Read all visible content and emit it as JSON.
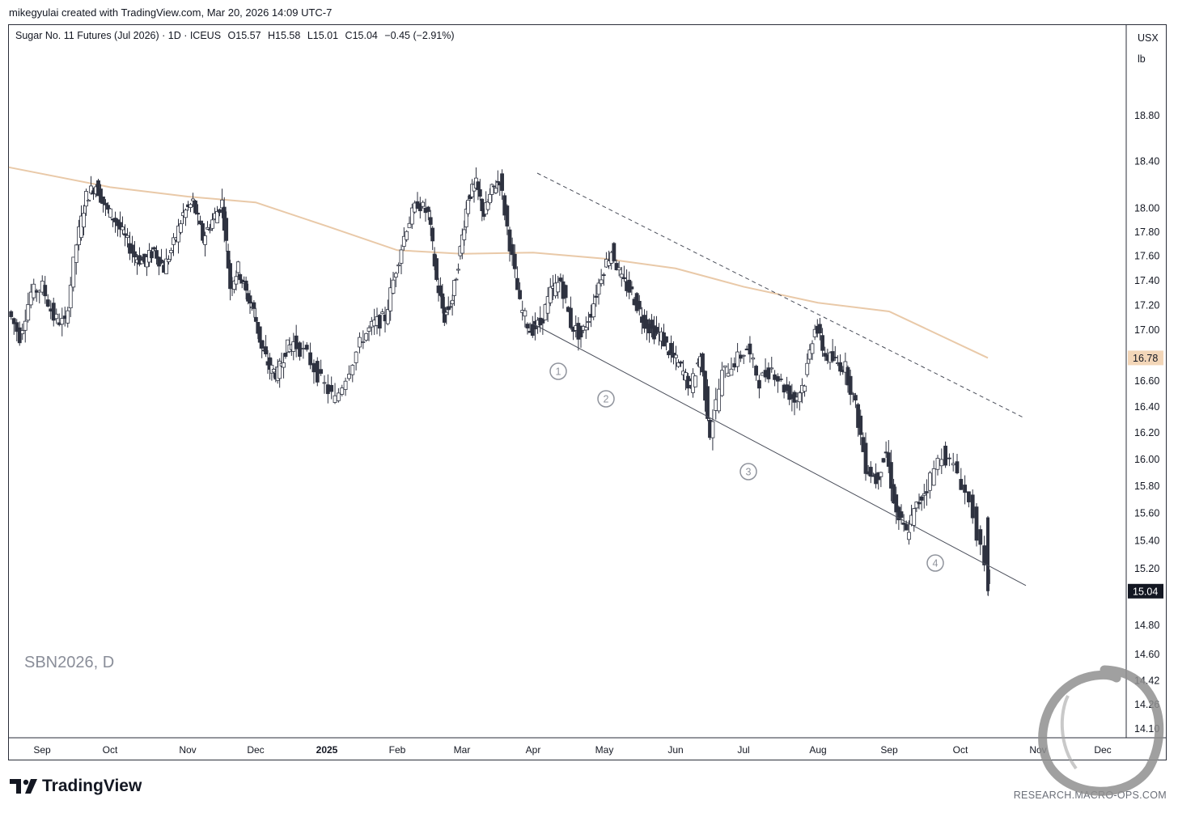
{
  "header": {
    "creator": "mikegyulai created with TradingView.com, Mar 20, 2026 14:09 UTC-7"
  },
  "legend": {
    "title": "Sugar No. 11 Futures (Jul 2026) · 1D · ICEUS",
    "open": "O15.57",
    "high": "H15.58",
    "low": "L15.01",
    "close": "C15.04",
    "change": "−0.45 (−2.91%)"
  },
  "unit": {
    "currency": "USX",
    "per": "lb"
  },
  "symbol_watermark": "SBN2026, D",
  "footer": {
    "brand": "TradingView",
    "url": "RESEARCH.MACRO-OPS.COM"
  },
  "colors": {
    "up_candle": "#ffffff",
    "down_candle": "#2e3240",
    "moving_average": "#e9c9a8",
    "ma_label_bg": "#f3d6b8",
    "last_price_bg": "#131722"
  },
  "chart_data": {
    "type": "candlestick",
    "y_scale": "log",
    "y_tick_labels": [
      "18.80",
      "18.40",
      "18.00",
      "17.80",
      "17.60",
      "17.40",
      "17.20",
      "17.00",
      "16.60",
      "16.40",
      "16.20",
      "16.00",
      "15.80",
      "15.60",
      "15.40",
      "15.20",
      "14.80",
      "14.60",
      "14.42",
      "14.26",
      "14.10"
    ],
    "x_tick_labels": [
      "Sep",
      "Oct",
      "Nov",
      "Dec",
      "2025",
      "Feb",
      "Mar",
      "Apr",
      "May",
      "Jun",
      "Jul",
      "Aug",
      "Sep",
      "Oct",
      "Nov",
      "Dec"
    ],
    "ma_label": "16.78",
    "last_price_label": "15.04",
    "wave_labels": [
      "1",
      "2",
      "3",
      "4"
    ],
    "close_path": [
      [
        "Sep",
        17.15
      ],
      [
        "Sep",
        16.95
      ],
      [
        "Sep",
        17.3
      ],
      [
        "Sep",
        17.35
      ],
      [
        "Sep",
        17.1
      ],
      [
        "Sep",
        17.05
      ],
      [
        "Oct",
        17.7
      ],
      [
        "Oct",
        18.1
      ],
      [
        "Oct",
        18.2
      ],
      [
        "Oct",
        18.0
      ],
      [
        "Oct",
        17.9
      ],
      [
        "Oct",
        17.75
      ],
      [
        "Oct",
        17.6
      ],
      [
        "Oct",
        17.55
      ],
      [
        "Nov",
        17.65
      ],
      [
        "Nov",
        17.5
      ],
      [
        "Nov",
        17.7
      ],
      [
        "Nov",
        17.95
      ],
      [
        "Nov",
        18.05
      ],
      [
        "Nov",
        17.75
      ],
      [
        "Nov",
        17.9
      ],
      [
        "Dec",
        18.05
      ],
      [
        "Dec",
        17.35
      ],
      [
        "Dec",
        17.5
      ],
      [
        "Dec",
        17.3
      ],
      [
        "Dec",
        17.15
      ],
      [
        "Dec",
        16.85
      ],
      [
        "Dec",
        16.7
      ],
      [
        "Dec",
        16.65
      ],
      [
        "Dec",
        16.85
      ],
      [
        "2025",
        16.9
      ],
      [
        "2025",
        16.8
      ],
      [
        "2025",
        16.6
      ],
      [
        "2025",
        16.45
      ],
      [
        "2025",
        16.7
      ],
      [
        "Feb",
        16.95
      ],
      [
        "Feb",
        17.05
      ],
      [
        "Feb",
        17.1
      ],
      [
        "Feb",
        17.5
      ],
      [
        "Feb",
        17.85
      ],
      [
        "Feb",
        18.05
      ],
      [
        "Mar",
        17.95
      ],
      [
        "Mar",
        17.4
      ],
      [
        "Mar",
        17.1
      ],
      [
        "Mar",
        17.25
      ],
      [
        "Mar",
        17.65
      ],
      [
        "Mar",
        18.1
      ],
      [
        "Mar",
        18.2
      ],
      [
        "Mar",
        17.95
      ],
      [
        "Mar",
        18.15
      ],
      [
        "Apr",
        18.25
      ],
      [
        "Apr",
        17.7
      ],
      [
        "Apr",
        17.2
      ],
      [
        "Apr",
        17.0
      ],
      [
        "Apr",
        17.05
      ],
      [
        "Apr",
        17.3
      ],
      [
        "Apr",
        17.4
      ],
      [
        "May",
        17.05
      ],
      [
        "May",
        16.95
      ],
      [
        "May",
        17.15
      ],
      [
        "May",
        17.45
      ],
      [
        "May",
        17.65
      ],
      [
        "May",
        17.4
      ],
      [
        "May",
        17.3
      ],
      [
        "Jun",
        17.1
      ],
      [
        "Jun",
        17.0
      ],
      [
        "Jun",
        16.95
      ],
      [
        "Jun",
        16.8
      ],
      [
        "Jun",
        16.7
      ],
      [
        "Jun",
        16.55
      ],
      [
        "Jun",
        16.8
      ],
      [
        "Jul",
        16.2
      ],
      [
        "Jul",
        16.65
      ],
      [
        "Jul",
        16.75
      ],
      [
        "Jul",
        16.85
      ],
      [
        "Jul",
        16.6
      ],
      [
        "Jul",
        16.7
      ],
      [
        "Aug",
        16.55
      ],
      [
        "Aug",
        16.45
      ],
      [
        "Aug",
        16.6
      ],
      [
        "Aug",
        17.05
      ],
      [
        "Aug",
        16.8
      ],
      [
        "Aug",
        16.75
      ],
      [
        "Aug",
        16.7
      ],
      [
        "Sep",
        16.4
      ],
      [
        "Sep",
        15.95
      ],
      [
        "Sep",
        15.85
      ],
      [
        "Sep",
        16.05
      ],
      [
        "Sep",
        15.6
      ],
      [
        "Sep",
        15.45
      ],
      [
        "Sep",
        15.65
      ],
      [
        "Oct",
        15.8
      ],
      [
        "Oct",
        16.05
      ],
      [
        "Oct",
        15.9
      ],
      [
        "Oct",
        15.6
      ],
      [
        "Oct",
        15.04
      ]
    ],
    "moving_average": [
      [
        "Sep",
        18.35
      ],
      [
        "Oct",
        18.18
      ],
      [
        "Nov",
        18.1
      ],
      [
        "Dec",
        18.05
      ],
      [
        "2025",
        17.85
      ],
      [
        "Feb",
        17.65
      ],
      [
        "Mar",
        17.62
      ],
      [
        "Apr",
        17.63
      ],
      [
        "May",
        17.58
      ],
      [
        "Jun",
        17.5
      ],
      [
        "Jul",
        17.35
      ],
      [
        "Aug",
        17.22
      ],
      [
        "Sep",
        17.15
      ],
      [
        "Oct",
        16.78
      ]
    ],
    "trendlines": [
      {
        "style": "dashed",
        "from": [
          "Mar",
          18.3
        ],
        "to": [
          "Nov",
          16.32
        ]
      },
      {
        "style": "solid",
        "from": [
          "Apr",
          17.05
        ],
        "to": [
          "Nov",
          15.08
        ]
      }
    ]
  }
}
